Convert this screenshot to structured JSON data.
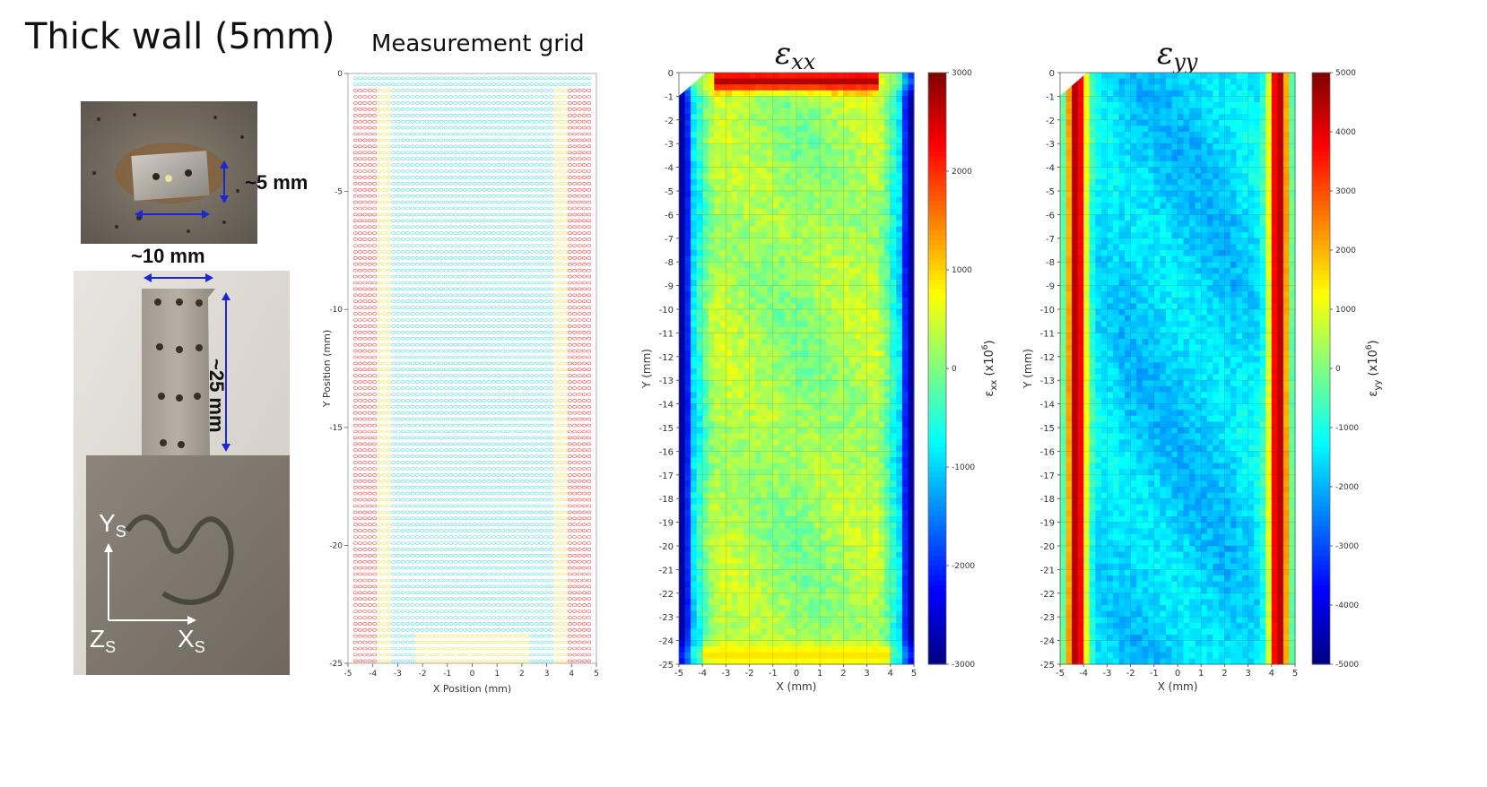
{
  "page_title": "Thick wall (5mm)",
  "photos": {
    "top_photo": {
      "dim_height": "~5 mm",
      "dim_width": "~10 mm"
    },
    "bottom_photo": {
      "dim_height": "~25 mm"
    },
    "axes": {
      "y": "Y",
      "y_sub": "S",
      "z": "Z",
      "z_sub": "S",
      "x": "X",
      "x_sub": "S"
    }
  },
  "colors": {
    "arrow": "#1a27d6",
    "axis_white": "#ffffff"
  },
  "chart_data": [
    {
      "type": "scatter",
      "title": "Measurement grid",
      "xlabel": "X Position (mm)",
      "ylabel": "Y Position (mm)",
      "xlim": [
        -5,
        5
      ],
      "ylim": [
        -25,
        0
      ],
      "xticks": [
        "-5",
        "-4",
        "-3",
        "-2",
        "-1",
        "0",
        "1",
        "2",
        "3",
        "4",
        "5"
      ],
      "yticks": [
        "0",
        "-5",
        "-10",
        "-15",
        "-20",
        "-25"
      ],
      "grid_x_range": [
        -4.7,
        4.7
      ],
      "grid_y_range": [
        -0.2,
        -24.9
      ],
      "rows": 95,
      "cols": 50,
      "marker": "open circle",
      "colors": {
        "edge": "#ee3a3a",
        "mid": "#f2e23a",
        "center": "#4ad9e0"
      }
    },
    {
      "type": "heatmap",
      "title": "ε",
      "title_sub": "xx",
      "xlabel": "X (mm)",
      "ylabel": "Y (mm)",
      "xlim": [
        -5,
        5
      ],
      "ylim": [
        -25,
        0
      ],
      "xticks": [
        "-5",
        "-4",
        "-3",
        "-2",
        "-1",
        "0",
        "1",
        "2",
        "3",
        "4",
        "5"
      ],
      "yticks": [
        "0",
        "-1",
        "-2",
        "-3",
        "-4",
        "-5",
        "-6",
        "-7",
        "-8",
        "-9",
        "-10",
        "-11",
        "-12",
        "-13",
        "-14",
        "-15",
        "-16",
        "-17",
        "-18",
        "-19",
        "-20",
        "-21",
        "-22",
        "-23",
        "-24",
        "-25"
      ],
      "colorbar": {
        "min": -3000,
        "max": 3000,
        "ticks": [
          "3000",
          "2000",
          "1000",
          "0",
          "-1000",
          "-2000",
          "-3000"
        ],
        "label": "ε",
        "label_sub": "xx",
        "label_suffix": " (x10",
        "label_exp": "6",
        "label_end": ")"
      },
      "grid": true,
      "field": "edges strongly compressive (~-2500) at x=±4.8, top edge tensile (~2500) near y=-0.2, bottom edge mildly tensile (~800), interior slightly tensile (~300-600)"
    },
    {
      "type": "heatmap",
      "title": "ε",
      "title_sub": "yy",
      "xlabel": "X (mm)",
      "ylabel": "Y (mm)",
      "xlim": [
        -5,
        5
      ],
      "ylim": [
        -25,
        0
      ],
      "xticks": [
        "-5",
        "-4",
        "-3",
        "-2",
        "-1",
        "0",
        "1",
        "2",
        "3",
        "4",
        "5"
      ],
      "yticks": [
        "0",
        "-1",
        "-2",
        "-3",
        "-4",
        "-5",
        "-6",
        "-7",
        "-8",
        "-9",
        "-10",
        "-11",
        "-12",
        "-13",
        "-14",
        "-15",
        "-16",
        "-17",
        "-18",
        "-19",
        "-20",
        "-21",
        "-22",
        "-23",
        "-24",
        "-25"
      ],
      "colorbar": {
        "min": -5000,
        "max": 5000,
        "ticks": [
          "5000",
          "4000",
          "3000",
          "2000",
          "1000",
          "0",
          "-1000",
          "-2000",
          "-3000",
          "-4000",
          "-5000"
        ],
        "label": "ε",
        "label_sub": "yy",
        "label_suffix": " (x10",
        "label_exp": "6",
        "label_end": ")"
      },
      "grid": true,
      "field": "edges strongly tensile (~4500) at x=±4.3, interior compressive (~-1500)"
    }
  ]
}
